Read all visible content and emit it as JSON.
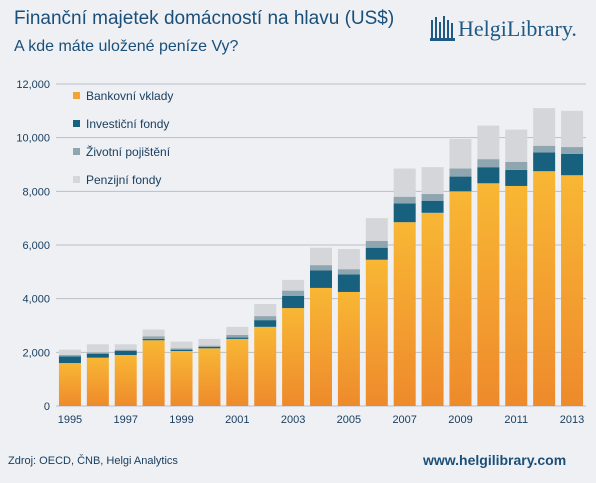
{
  "header": {
    "title": "Finanční majetek domácností na hlavu (US$)",
    "subtitle": "A kde máte uložené peníze Vy?"
  },
  "logo": {
    "text": "HelgiLibrary."
  },
  "footer": {
    "source": "Zdroj: OECD, ČNB, Helgi Analytics",
    "website": "www.helgilibrary.com"
  },
  "colors": {
    "bank_top": "#f8b734",
    "bank_bottom": "#ee8a2c",
    "invest": "#18617e",
    "insurance": "#8fa6b1",
    "pension": "#d4d6d9",
    "grid": "#b9bec6",
    "axis_text": "#1a3f60"
  },
  "chart_data": {
    "type": "bar",
    "stacked": true,
    "categories": [
      "1995",
      "1996",
      "1997",
      "1998",
      "1999",
      "2000",
      "2001",
      "2002",
      "2003",
      "2004",
      "2005",
      "2006",
      "2007",
      "2008",
      "2009",
      "2010",
      "2011",
      "2012",
      "2013"
    ],
    "x_tick_labels": [
      "1995",
      "1997",
      "1999",
      "2001",
      "2003",
      "2005",
      "2007",
      "2009",
      "2011",
      "2013"
    ],
    "y_ticks": [
      "0",
      "2,000",
      "4,000",
      "6,000",
      "8,000",
      "10,000",
      "12,000"
    ],
    "ylim": [
      0,
      12000
    ],
    "grid": true,
    "legend_position": "top-left",
    "series": [
      {
        "name": "Bankovní vklady",
        "color": "#f4a233",
        "values": [
          1600,
          1800,
          1900,
          2450,
          2050,
          2150,
          2500,
          2950,
          3650,
          4400,
          4250,
          5450,
          6850,
          7200,
          8000,
          8300,
          8200,
          8750,
          8600
        ]
      },
      {
        "name": "Investiční fondy",
        "color": "#18617e",
        "values": [
          250,
          150,
          150,
          50,
          50,
          50,
          50,
          250,
          450,
          650,
          650,
          450,
          700,
          450,
          550,
          600,
          600,
          700,
          800
        ]
      },
      {
        "name": "Životní pojištění",
        "color": "#8fa6b1",
        "values": [
          50,
          50,
          50,
          100,
          50,
          50,
          100,
          150,
          200,
          200,
          200,
          250,
          250,
          250,
          300,
          300,
          300,
          250,
          250
        ]
      },
      {
        "name": "Penzijní fondy",
        "color": "#d4d6d9",
        "values": [
          200,
          300,
          200,
          250,
          250,
          250,
          300,
          450,
          400,
          650,
          750,
          850,
          1050,
          1000,
          1100,
          1250,
          1200,
          1400,
          1350
        ]
      }
    ]
  }
}
